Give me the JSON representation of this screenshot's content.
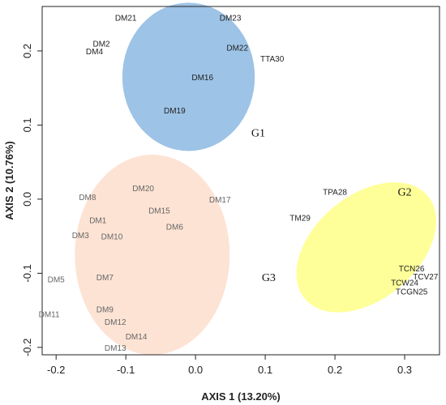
{
  "chart_data": {
    "type": "scatter",
    "title": "",
    "xlabel": "AXIS 1 (13.20%)",
    "ylabel": "AXIS 2 (10.76%)",
    "xlim": [
      -0.22,
      0.35
    ],
    "ylim": [
      -0.21,
      0.26
    ],
    "xticks": [
      -0.2,
      -0.1,
      0.0,
      0.1,
      0.2,
      0.3
    ],
    "xtick_labels": [
      "-0.2",
      "-0.1",
      "0.0",
      "0.1",
      "0.2",
      "0.3"
    ],
    "yticks": [
      -0.2,
      -0.1,
      0.0,
      0.1,
      0.2
    ],
    "ytick_labels": [
      "-0.2",
      "-0.1",
      "0.0",
      "0.1",
      "0.2"
    ],
    "grid": false,
    "groups": [
      {
        "name": "G1",
        "color": "#9dc3e6",
        "center": [
          -0.01,
          0.165
        ],
        "radius": [
          0.095,
          0.1
        ],
        "rotation": 0,
        "label_pos": [
          0.09,
          0.09
        ]
      },
      {
        "name": "G2",
        "color": "#ffff99",
        "center": [
          0.245,
          -0.065
        ],
        "radius": [
          0.115,
          0.07
        ],
        "rotation": -40,
        "label_pos": [
          0.3,
          0.01
        ]
      },
      {
        "name": "G3",
        "color": "#fde3d4",
        "center": [
          -0.062,
          -0.075
        ],
        "radius": [
          0.111,
          0.135
        ],
        "rotation": 0,
        "label_pos": [
          0.105,
          -0.105
        ]
      }
    ],
    "points": [
      {
        "label": "DM21",
        "x": -0.1,
        "y": 0.245,
        "group": "G1"
      },
      {
        "label": "DM23",
        "x": 0.05,
        "y": 0.245,
        "group": "G1"
      },
      {
        "label": "DM2",
        "x": -0.135,
        "y": 0.21,
        "group": "G1"
      },
      {
        "label": "DM4",
        "x": -0.145,
        "y": 0.2,
        "group": "G1"
      },
      {
        "label": "DM22",
        "x": 0.06,
        "y": 0.205,
        "group": "G1"
      },
      {
        "label": "TTA30",
        "x": 0.11,
        "y": 0.19,
        "group": "G1"
      },
      {
        "label": "DM16",
        "x": 0.01,
        "y": 0.165,
        "group": "G1"
      },
      {
        "label": "DM19",
        "x": -0.03,
        "y": 0.12,
        "group": "G1"
      },
      {
        "label": "TPA28",
        "x": 0.2,
        "y": 0.01,
        "group": "G2"
      },
      {
        "label": "TM29",
        "x": 0.15,
        "y": -0.025,
        "group": "G2"
      },
      {
        "label": "TCN26",
        "x": 0.31,
        "y": -0.093,
        "group": "G2"
      },
      {
        "label": "TCV27",
        "x": 0.33,
        "y": -0.104,
        "group": "G2"
      },
      {
        "label": "TCW24",
        "x": 0.3,
        "y": -0.112,
        "group": "G2"
      },
      {
        "label": "TCGN25",
        "x": 0.31,
        "y": -0.124,
        "group": "G2"
      },
      {
        "label": "DM20",
        "x": -0.075,
        "y": 0.015,
        "group": "G3"
      },
      {
        "label": "DM17",
        "x": 0.035,
        "y": 0.0,
        "group": "G3"
      },
      {
        "label": "DM8",
        "x": -0.155,
        "y": 0.003,
        "group": "G3"
      },
      {
        "label": "DM15",
        "x": -0.052,
        "y": -0.015,
        "group": "G3"
      },
      {
        "label": "DM1",
        "x": -0.14,
        "y": -0.028,
        "group": "G3"
      },
      {
        "label": "DM6",
        "x": -0.03,
        "y": -0.037,
        "group": "G3"
      },
      {
        "label": "DM3",
        "x": -0.165,
        "y": -0.048,
        "group": "G3"
      },
      {
        "label": "DM10",
        "x": -0.12,
        "y": -0.05,
        "group": "G3"
      },
      {
        "label": "DM5",
        "x": -0.2,
        "y": -0.108,
        "group": "G3"
      },
      {
        "label": "DM7",
        "x": -0.13,
        "y": -0.105,
        "group": "G3"
      },
      {
        "label": "DM9",
        "x": -0.13,
        "y": -0.148,
        "group": "G3"
      },
      {
        "label": "DM12",
        "x": -0.115,
        "y": -0.165,
        "group": "G3"
      },
      {
        "label": "DM11",
        "x": -0.21,
        "y": -0.155,
        "group": "G3"
      },
      {
        "label": "DM14",
        "x": -0.085,
        "y": -0.185,
        "group": "G3"
      },
      {
        "label": "DM13",
        "x": -0.115,
        "y": -0.2,
        "group": "G3"
      }
    ],
    "label_colors": {
      "G1": "#222222",
      "G2": "#222222",
      "G3": "#666666",
      "default": "#222222"
    }
  }
}
